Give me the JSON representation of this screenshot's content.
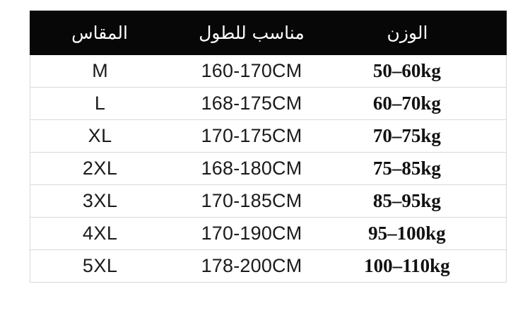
{
  "colors": {
    "header_bg": "#070707",
    "header_text": "#ffffff",
    "divider": "#d9d9d9",
    "body_text": "#1b1b1b",
    "background": "#ffffff"
  },
  "chart_data": {
    "type": "table",
    "title": "",
    "columns": [
      "المقاس",
      "مناسب للطول",
      "الوزن"
    ],
    "column_meanings": [
      "size",
      "suitable-for-height",
      "weight"
    ],
    "rows": [
      [
        "M",
        "160-170CM",
        "50–60kg"
      ],
      [
        "L",
        "168-175CM",
        "60–70kg"
      ],
      [
        "XL",
        "170-175CM",
        "70–75kg"
      ],
      [
        "2XL",
        "168-180CM",
        "75–85kg"
      ],
      [
        "3XL",
        "170-185CM",
        "85–95kg"
      ],
      [
        "4XL",
        "170-190CM",
        "95–100kg"
      ],
      [
        "5XL",
        "178-200CM",
        "100–110kg"
      ]
    ],
    "layout_hints": {
      "header_background": "black",
      "row_dividers": "light-gray",
      "weight_column_font": "bold-serif"
    }
  }
}
